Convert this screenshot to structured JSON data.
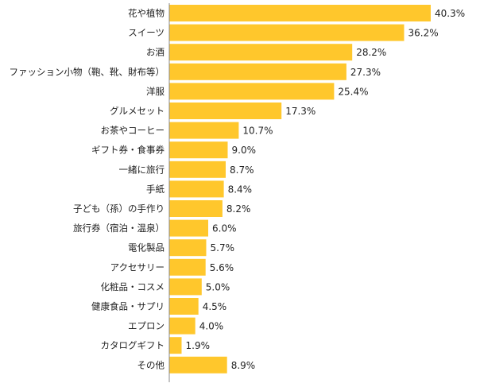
{
  "chart_data": {
    "type": "bar",
    "orientation": "horizontal",
    "title": "",
    "xlabel": "",
    "ylabel": "",
    "unit": "%",
    "xlim": [
      0,
      40.3
    ],
    "grid": false,
    "legend": "none",
    "bar_color": "#FFC72C",
    "categories": [
      "花や植物",
      "スイーツ",
      "お酒",
      "ファッション小物（鞄、靴、財布等）",
      "洋服",
      "グルメセット",
      "お茶やコーヒー",
      "ギフト券・食事券",
      "一緒に旅行",
      "手紙",
      "子ども（孫）の手作り",
      "旅行券（宿泊・温泉）",
      "電化製品",
      "アクセサリー",
      "化粧品・コスメ",
      "健康食品・サプリ",
      "エプロン",
      "カタログギフト",
      "その他"
    ],
    "values": [
      40.3,
      36.2,
      28.2,
      27.3,
      25.4,
      17.3,
      10.7,
      9.0,
      8.7,
      8.4,
      8.2,
      6.0,
      5.7,
      5.6,
      5.0,
      4.5,
      4.0,
      1.9,
      8.9
    ],
    "value_labels": [
      "40.3%",
      "36.2%",
      "28.2%",
      "27.3%",
      "25.4%",
      "17.3%",
      "10.7%",
      "9.0%",
      "8.7%",
      "8.4%",
      "8.2%",
      "6.0%",
      "5.7%",
      "5.6%",
      "5.0%",
      "4.5%",
      "4.0%",
      "1.9%",
      "8.9%"
    ]
  }
}
